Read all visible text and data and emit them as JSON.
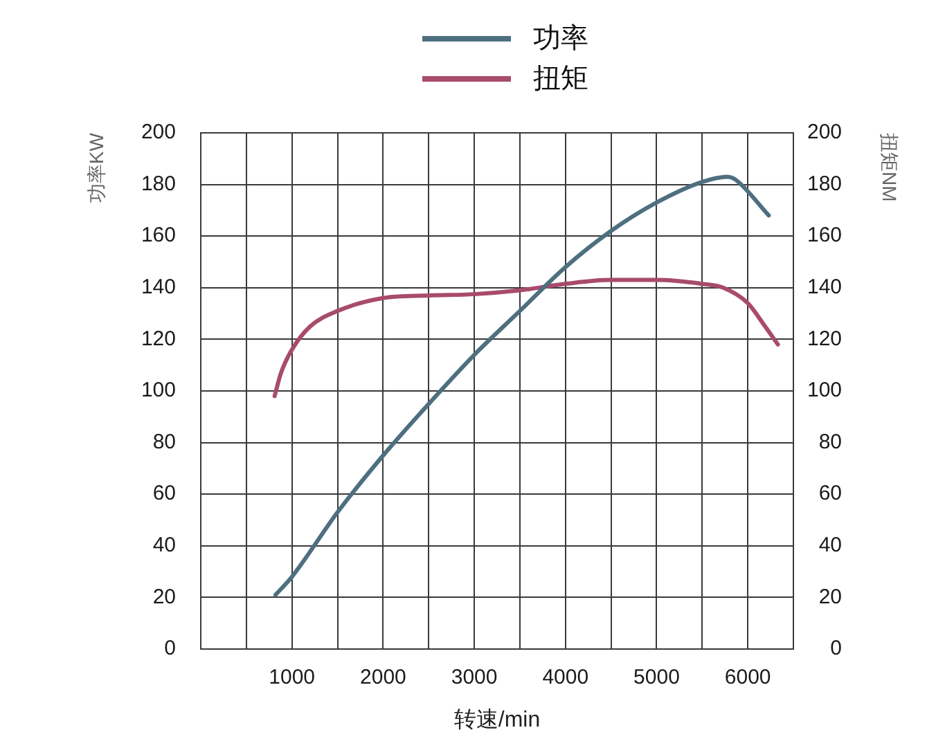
{
  "chart_data": {
    "type": "line",
    "xlabel": "转速/min",
    "ylabel": "功率KW",
    "y2label": "扭矩NM",
    "xlim": [
      0,
      6500
    ],
    "xticks": [
      {
        "value": 500,
        "label": null
      },
      1000,
      {
        "value": 1500,
        "label": null
      },
      2000,
      {
        "value": 2500,
        "label": null
      },
      3000,
      {
        "value": 3500,
        "label": null
      },
      4000,
      {
        "value": 4500,
        "label": null
      },
      5000,
      {
        "value": 5500,
        "label": null
      },
      6000
    ],
    "ylim": [
      0,
      200
    ],
    "yticks": [
      0,
      20,
      40,
      60,
      80,
      100,
      120,
      140,
      160,
      180,
      200
    ],
    "y2lim": [
      0,
      200
    ],
    "y2ticks": [
      0,
      20,
      40,
      60,
      80,
      100,
      120,
      140,
      160,
      180,
      200
    ],
    "grid": true,
    "legend": "top",
    "series": [
      {
        "name": "功率",
        "color": "#4e6f80",
        "x": [
          820,
          1000,
          1500,
          2000,
          2500,
          3000,
          3500,
          4000,
          4500,
          5000,
          5500,
          5780,
          5860,
          6230
        ],
        "values": [
          21,
          28,
          53,
          75,
          95,
          114,
          131,
          148,
          162,
          173,
          181,
          183,
          182,
          168
        ]
      },
      {
        "name": "扭矩",
        "color": "#a84b6c",
        "axis": "y2",
        "x": [
          810,
          880,
          1000,
          1200,
          1500,
          2000,
          2500,
          3000,
          3500,
          4000,
          4500,
          5000,
          5500,
          5730,
          6000,
          6190,
          6330
        ],
        "values": [
          98,
          107,
          116,
          125,
          131,
          136,
          137,
          137.5,
          139,
          141.5,
          143,
          143,
          141.5,
          140,
          134,
          125,
          118
        ]
      }
    ]
  }
}
